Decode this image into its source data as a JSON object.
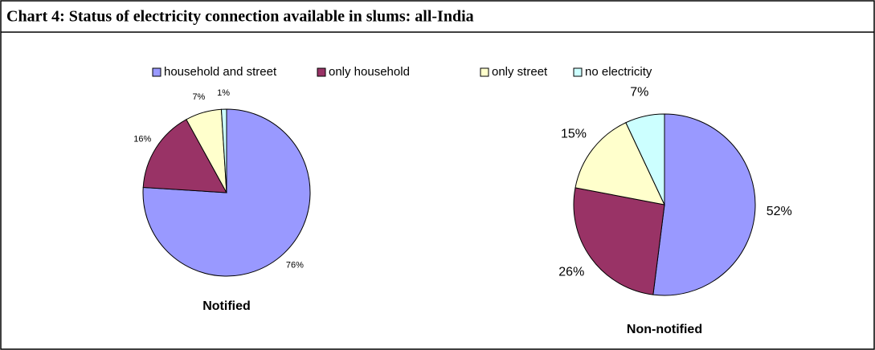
{
  "title": "Chart 4: Status of electricity connection available in slums:  all-India",
  "legend": {
    "categories": [
      "household and street",
      "only household",
      "only street",
      "no electricity"
    ],
    "colors": [
      "#9999ff",
      "#993366",
      "#ffffcc",
      "#ccffff"
    ]
  },
  "chart_data": [
    {
      "type": "pie",
      "title": "Notified",
      "values": [
        76,
        16,
        7,
        1
      ],
      "value_labels": [
        "76%",
        "16%",
        "7%",
        "1%"
      ]
    },
    {
      "type": "pie",
      "title": "Non-notified",
      "values": [
        52,
        26,
        15,
        7
      ],
      "value_labels": [
        "52%",
        "26%",
        "15%",
        "7%"
      ]
    }
  ]
}
